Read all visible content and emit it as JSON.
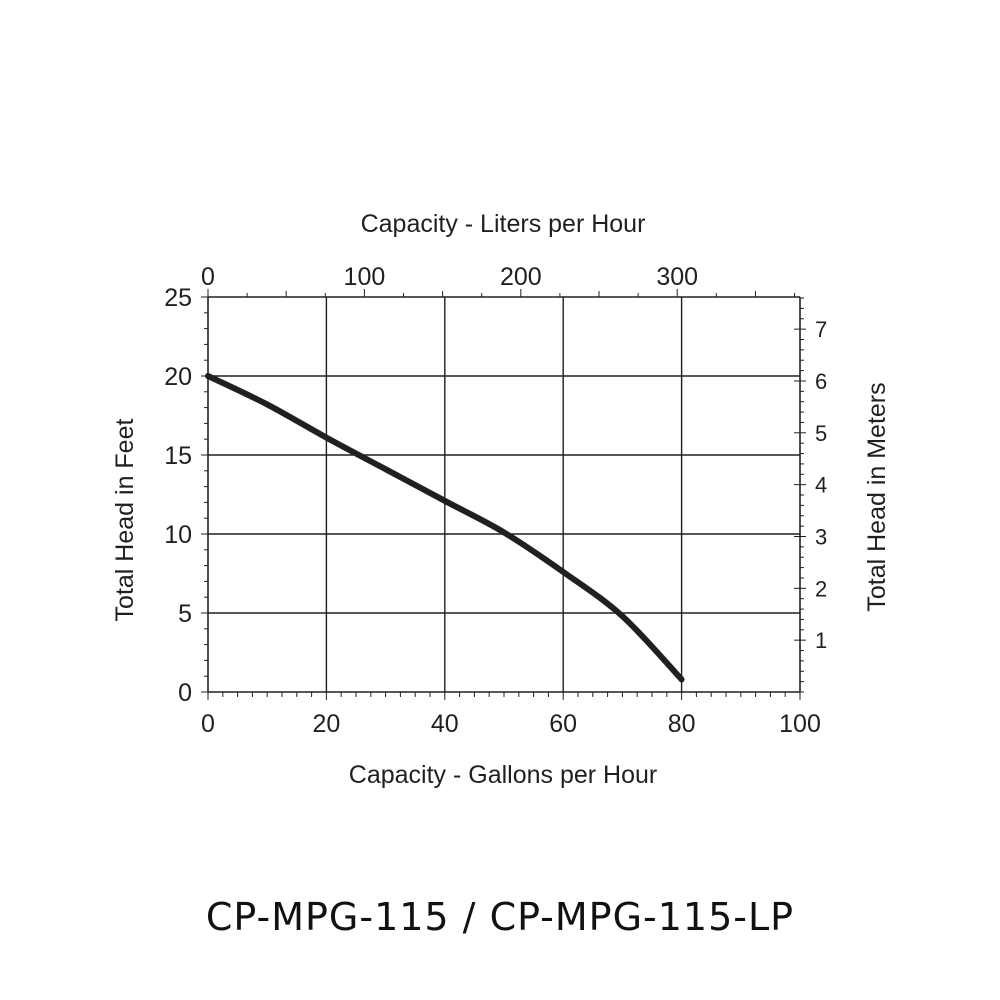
{
  "chart_data": {
    "type": "line",
    "title": "",
    "x_axis": {
      "label": "Capacity - Gallons per Hour",
      "range": [
        0,
        100
      ],
      "ticks": [
        0,
        20,
        40,
        60,
        80,
        100
      ]
    },
    "y_axis": {
      "label": "Total Head in Feet",
      "range": [
        0,
        25
      ],
      "ticks": [
        0,
        5,
        10,
        15,
        20,
        25
      ]
    },
    "x2_axis": {
      "label": "Capacity - Liters per Hour",
      "range": [
        0,
        378.5
      ],
      "ticks": [
        0,
        100,
        200,
        300
      ]
    },
    "y2_axis": {
      "label": "Total Head in Meters",
      "range": [
        0,
        7.62
      ],
      "ticks": [
        1,
        2,
        3,
        4,
        5,
        6,
        7
      ]
    },
    "grid": true,
    "series": [
      {
        "x": [
          0,
          10,
          20,
          30,
          40,
          50,
          60,
          70,
          80
        ],
        "y": [
          20,
          18.2,
          16.1,
          14.1,
          12.1,
          10.1,
          7.6,
          4.8,
          0.8
        ]
      }
    ],
    "line_color": "#231f20"
  },
  "model": {
    "title": "CP-MPG-115 / CP-MPG-115-LP"
  }
}
